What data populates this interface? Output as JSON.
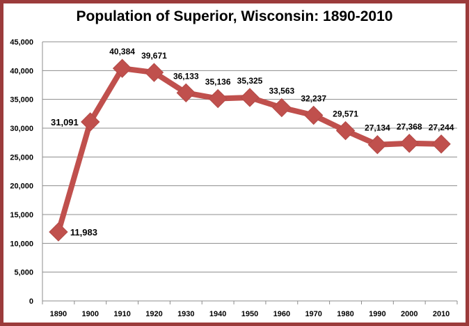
{
  "chart_data": {
    "type": "line",
    "title": "Population of Superior, Wisconsin:  1890-2010",
    "xlabel": "",
    "ylabel": "",
    "ylim": [
      0,
      45000
    ],
    "yticks": [
      "0",
      "5,000",
      "10,000",
      "15,000",
      "20,000",
      "25,000",
      "30,000",
      "35,000",
      "40,000",
      "45,000"
    ],
    "categories": [
      "1890",
      "1900",
      "1910",
      "1920",
      "1930",
      "1940",
      "1950",
      "1960",
      "1970",
      "1980",
      "1990",
      "2000",
      "2010"
    ],
    "series": [
      {
        "values": [
          11983,
          31091,
          40384,
          39671,
          36133,
          35136,
          35325,
          33563,
          32237,
          29571,
          27134,
          27368,
          27244
        ],
        "labels": [
          "11,983",
          "31,091",
          "40,384",
          "39,671",
          "36,133",
          "35,136",
          "35,325",
          "33,563",
          "32,237",
          "29,571",
          "27,134",
          "27,368",
          "27,244"
        ],
        "color": "#c0504d"
      }
    ],
    "grid": true,
    "legend": "none",
    "frame_color": "#9b3b3b"
  }
}
